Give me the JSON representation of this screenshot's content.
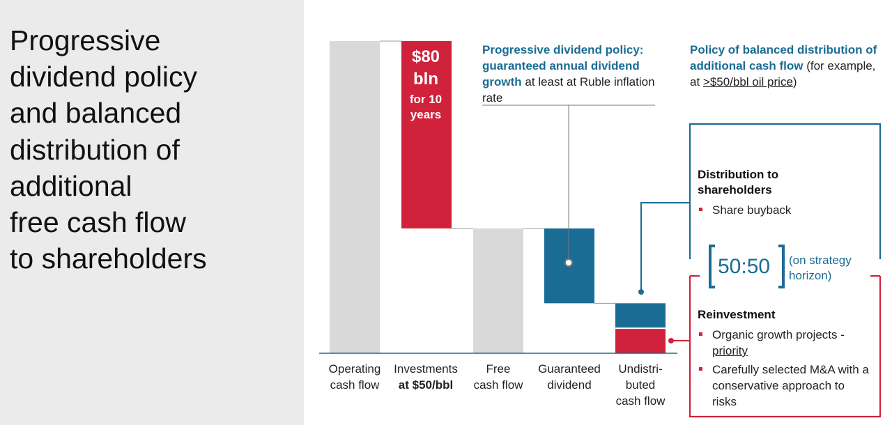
{
  "title_lines": [
    "Progressive",
    "dividend policy",
    "and balanced",
    "distribution of",
    "additional",
    "free cash flow",
    "to shareholders"
  ],
  "chart_data": {
    "type": "bar",
    "subtype": "waterfall",
    "categories": [
      [
        "Operating",
        "cash flow"
      ],
      [
        "Investments",
        "at $50/bbl"
      ],
      [
        "Free",
        "cash flow"
      ],
      [
        "Guaranteed",
        "dividend"
      ],
      [
        "Undistri-",
        "buted",
        "cash flow"
      ]
    ],
    "bars": [
      {
        "base": 0,
        "top": 1.0,
        "color": "#d9d9d9"
      },
      {
        "base": 0.4,
        "top": 1.0,
        "color": "#d0223a"
      },
      {
        "base": 0,
        "top": 0.4,
        "color": "#d9d9d9"
      },
      {
        "base": 0.16,
        "top": 0.4,
        "color": "#1a6c94"
      },
      {
        "base": 0,
        "top": 0.16,
        "segments": [
          {
            "base": 0,
            "top": 0.08,
            "color": "#d0223a"
          },
          {
            "base": 0.08,
            "top": 0.16,
            "color": "#1a6c94"
          }
        ]
      }
    ],
    "investment_label": [
      "$80",
      "bln",
      "for 10",
      "years"
    ]
  },
  "annotation_dividend": {
    "bold_part": "Progressive dividend policy: guaranteed annual dividend growth",
    "rest": " at least at Ruble inflation rate"
  },
  "annotation_policy": {
    "bold_part": "Policy of balanced distribution of additional cash flow",
    "text1": " (for example, at ",
    "underlined": ">$50/bbl oil price",
    "text2": ")"
  },
  "distribution_box": {
    "heading": [
      "Distribution to",
      "shareholders"
    ],
    "bullets": [
      "Share buyback"
    ]
  },
  "ratio": {
    "value": "50:50",
    "note": [
      "(on strategy",
      "horizon)"
    ]
  },
  "reinvestment_box": {
    "heading": "Reinvestment",
    "bullet1_text": "Organic growth projects - ",
    "bullet1_underlined": "priority",
    "bullet2": "Carefully selected M&A with a conservative approach to risks"
  },
  "colors": {
    "blue": "#1a6c94",
    "red": "#d0223a",
    "gray": "#d9d9d9"
  }
}
